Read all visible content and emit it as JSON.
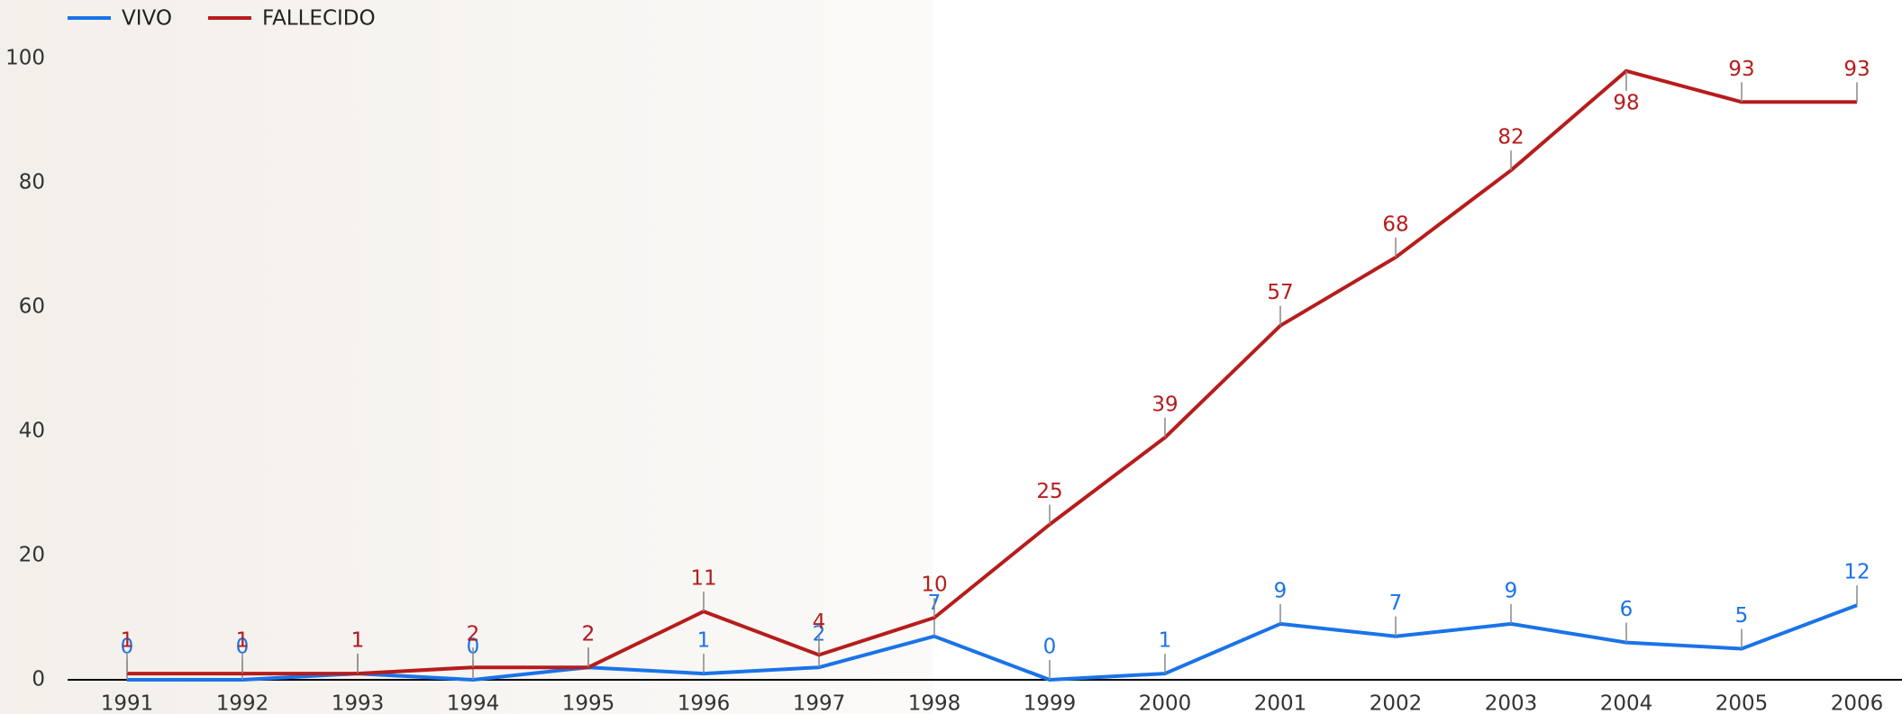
{
  "chart_data": {
    "type": "line",
    "categories": [
      "1991",
      "1992",
      "1993",
      "1994",
      "1995",
      "1996",
      "1997",
      "1998",
      "1999",
      "2000",
      "2001",
      "2002",
      "2003",
      "2004",
      "2005",
      "2006"
    ],
    "series": [
      {
        "name": "VIVO",
        "color": "#1a73e8",
        "values": [
          0,
          0,
          1,
          0,
          2,
          1,
          2,
          7,
          0,
          1,
          9,
          7,
          9,
          6,
          5,
          12
        ]
      },
      {
        "name": "FALLECIDO",
        "color": "#b71c1c",
        "values": [
          1,
          1,
          1,
          2,
          2,
          11,
          4,
          10,
          25,
          39,
          57,
          68,
          82,
          98,
          93,
          93
        ]
      }
    ],
    "ylim": [
      0,
      100
    ],
    "yticks": [
      0,
      20,
      40,
      60,
      80,
      100
    ],
    "grid": false,
    "legend": "top-left"
  }
}
